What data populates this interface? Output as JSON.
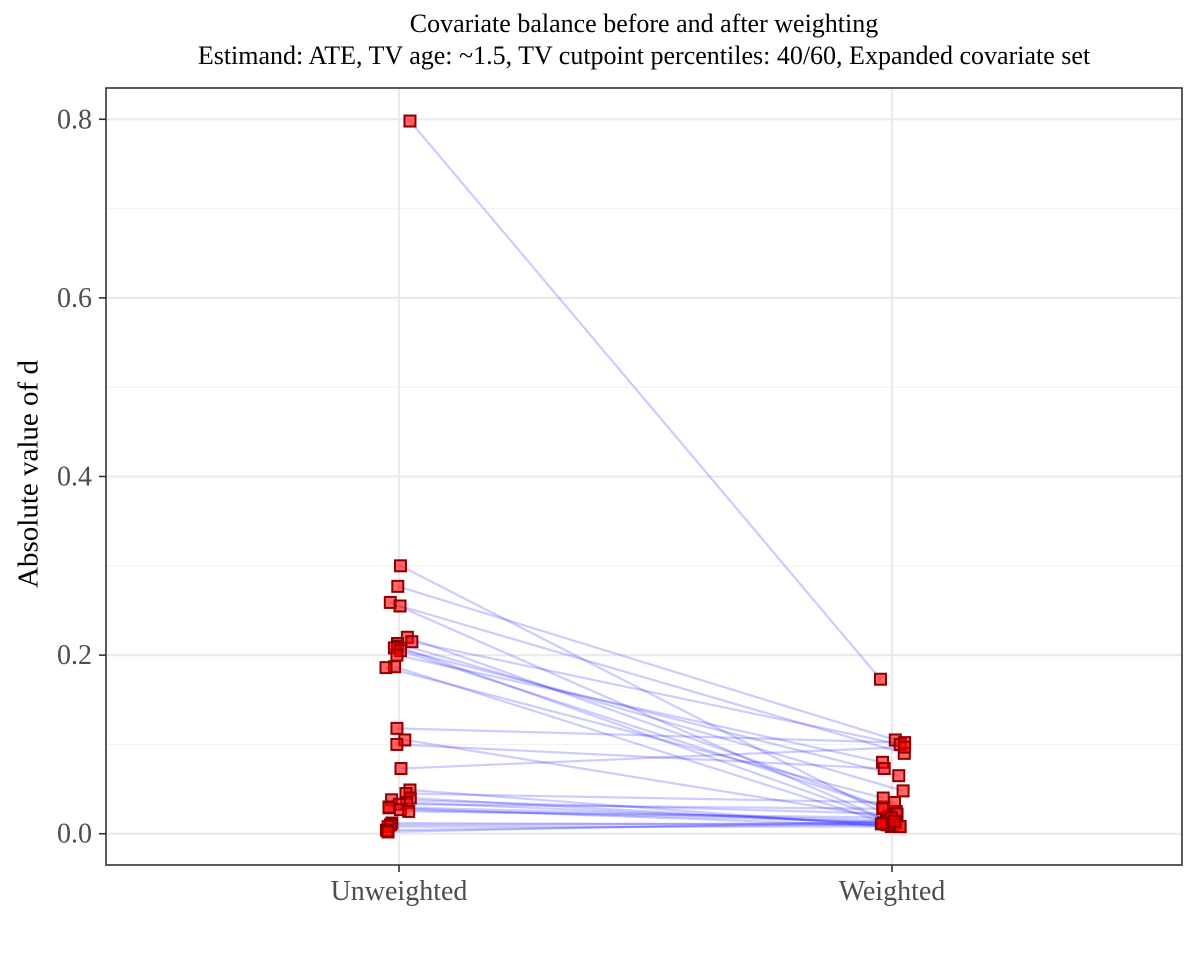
{
  "chart_data": {
    "type": "scatter",
    "title": "Covariate balance before and after weighting",
    "subtitle": "Estimand: ATE, TV age: ~1.5, TV cutpoint percentiles: 40/60, Expanded covariate set",
    "xlabel": "",
    "ylabel": "Absolute value of d",
    "categories": [
      "Unweighted",
      "Weighted"
    ],
    "ylim": [
      -0.035,
      0.835
    ],
    "yticks": [
      "0.0",
      "0.2",
      "0.4",
      "0.6",
      "0.8"
    ],
    "grid": true,
    "point_color": "#ff0000",
    "point_edge_color": "#8b0000",
    "line_color": "#0000ff",
    "pairs": [
      {
        "unweighted": 0.798,
        "weighted": 0.173
      },
      {
        "unweighted": 0.3,
        "weighted": 0.02
      },
      {
        "unweighted": 0.277,
        "weighted": 0.105
      },
      {
        "unweighted": 0.259,
        "weighted": 0.015
      },
      {
        "unweighted": 0.255,
        "weighted": 0.09
      },
      {
        "unweighted": 0.22,
        "weighted": 0.03
      },
      {
        "unweighted": 0.215,
        "weighted": 0.1
      },
      {
        "unweighted": 0.213,
        "weighted": 0.048
      },
      {
        "unweighted": 0.21,
        "weighted": 0.012
      },
      {
        "unweighted": 0.208,
        "weighted": 0.065
      },
      {
        "unweighted": 0.205,
        "weighted": 0.025
      },
      {
        "unweighted": 0.2,
        "weighted": 0.08
      },
      {
        "unweighted": 0.187,
        "weighted": 0.01
      },
      {
        "unweighted": 0.186,
        "weighted": 0.04
      },
      {
        "unweighted": 0.118,
        "weighted": 0.102
      },
      {
        "unweighted": 0.105,
        "weighted": 0.018
      },
      {
        "unweighted": 0.1,
        "weighted": 0.073
      },
      {
        "unweighted": 0.073,
        "weighted": 0.097
      },
      {
        "unweighted": 0.049,
        "weighted": 0.008
      },
      {
        "unweighted": 0.045,
        "weighted": 0.035
      },
      {
        "unweighted": 0.04,
        "weighted": 0.01
      },
      {
        "unweighted": 0.038,
        "weighted": 0.022
      },
      {
        "unweighted": 0.035,
        "weighted": 0.012
      },
      {
        "unweighted": 0.033,
        "weighted": 0.028
      },
      {
        "unweighted": 0.03,
        "weighted": 0.015
      },
      {
        "unweighted": 0.029,
        "weighted": 0.008
      },
      {
        "unweighted": 0.027,
        "weighted": 0.013
      },
      {
        "unweighted": 0.025,
        "weighted": 0.018
      },
      {
        "unweighted": 0.012,
        "weighted": 0.01
      },
      {
        "unweighted": 0.01,
        "weighted": 0.012
      },
      {
        "unweighted": 0.008,
        "weighted": 0.008
      },
      {
        "unweighted": 0.004,
        "weighted": 0.011
      },
      {
        "unweighted": 0.002,
        "weighted": 0.014
      }
    ]
  }
}
